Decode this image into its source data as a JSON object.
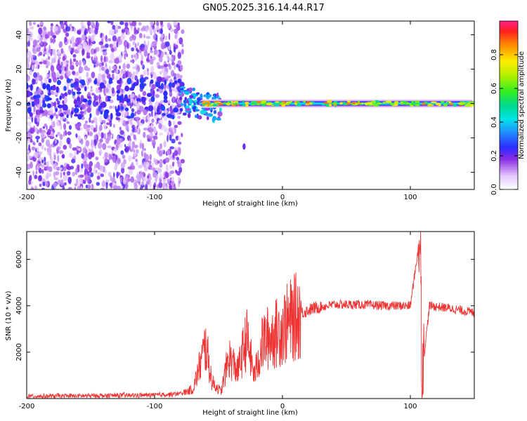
{
  "title": "GN05.2025.316.14.44.R17",
  "chart_data": [
    {
      "type": "heatmap",
      "name": "spectrogram",
      "xlabel": "Height of straight line (km)",
      "ylabel": "Frequency (Hz)",
      "xlim": [
        -200,
        150
      ],
      "ylim": [
        -50,
        48
      ],
      "xticks": [
        -200,
        -100,
        0,
        100
      ],
      "yticks": [
        -40,
        -20,
        0,
        20,
        40
      ],
      "colorbar": {
        "label": "Normalized spectral amplitude",
        "range": [
          0,
          1
        ],
        "ticks": [
          0.0,
          0.2,
          0.4,
          0.6,
          0.8
        ]
      },
      "description_values": {
        "noise_region_km": [
          -200,
          -78
        ],
        "signal_line_freq_hz": 0,
        "transition_km": [
          -78,
          -50
        ],
        "isolated_blob": {
          "x_km": -30,
          "freq_hz": -25
        }
      }
    },
    {
      "type": "line",
      "name": "snr",
      "xlabel": "Height of straight line (km)",
      "ylabel": "SNR (10 * v/v)",
      "xlim": [
        -200,
        150
      ],
      "ylim": [
        0,
        7200
      ],
      "xticks": [
        -200,
        -100,
        0,
        100
      ],
      "yticks": [
        2000,
        4000,
        6000
      ],
      "color": "#ee3333",
      "series_outline": [
        {
          "x": -200,
          "y": 100
        },
        {
          "x": -150,
          "y": 120
        },
        {
          "x": -100,
          "y": 150
        },
        {
          "x": -80,
          "y": 200
        },
        {
          "x": -70,
          "y": 400
        },
        {
          "x": -60,
          "y": 2300
        },
        {
          "x": -55,
          "y": 700
        },
        {
          "x": -48,
          "y": 300
        },
        {
          "x": -42,
          "y": 1800
        },
        {
          "x": -35,
          "y": 1200
        },
        {
          "x": -28,
          "y": 2600
        },
        {
          "x": -22,
          "y": 1000
        },
        {
          "x": -15,
          "y": 2500
        },
        {
          "x": -5,
          "y": 2800
        },
        {
          "x": 5,
          "y": 3300
        },
        {
          "x": 15,
          "y": 3700
        },
        {
          "x": 25,
          "y": 3900
        },
        {
          "x": 40,
          "y": 4050
        },
        {
          "x": 60,
          "y": 4050
        },
        {
          "x": 80,
          "y": 4000
        },
        {
          "x": 100,
          "y": 4000
        },
        {
          "x": 108,
          "y": 7200
        },
        {
          "x": 109,
          "y": 1000
        },
        {
          "x": 115,
          "y": 4000
        },
        {
          "x": 130,
          "y": 3900
        },
        {
          "x": 150,
          "y": 3700
        }
      ]
    }
  ]
}
